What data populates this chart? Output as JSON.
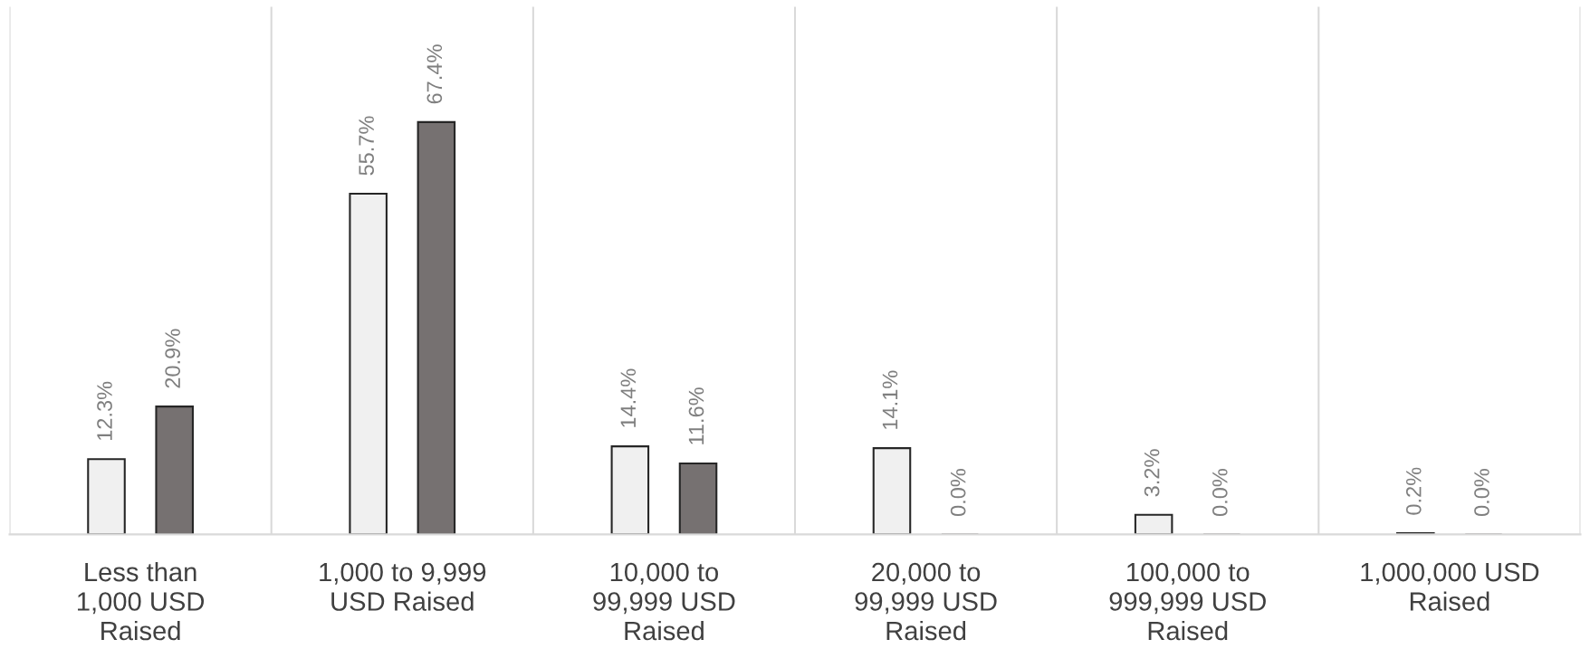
{
  "chart_data": {
    "type": "bar",
    "categories": [
      "Less than\n1,000 USD\nRaised",
      "1,000 to 9,999\nUSD Raised",
      "10,000 to\n99,999 USD\nRaised",
      "20,000 to\n99,999 USD\nRaised",
      "100,000 to\n999,999 USD\nRaised",
      "1,000,000 USD\nRaised"
    ],
    "series": [
      {
        "color": "#f0f0f0",
        "values": [
          12.3,
          55.7,
          14.4,
          14.1,
          3.2,
          0.2
        ],
        "value_labels": [
          "12.3%",
          "55.7%",
          "14.4%",
          "14.1%",
          "3.2%",
          "0.2%"
        ]
      },
      {
        "color": "#767171",
        "values": [
          20.9,
          67.4,
          11.6,
          0.0,
          0.0,
          0.0
        ],
        "value_labels": [
          "20.9%",
          "67.4%",
          "11.6%",
          "0.0%",
          "0.0%",
          "0.0%"
        ]
      }
    ],
    "grid": "x",
    "legend": false
  }
}
